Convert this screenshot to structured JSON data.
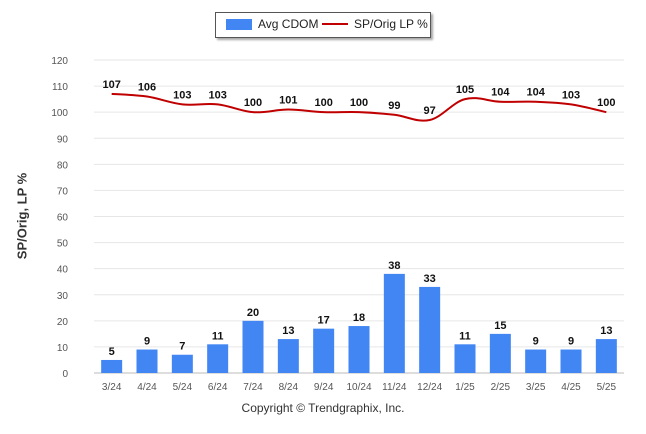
{
  "legend": {
    "bar_label": "Avg CDOM",
    "line_label": "SP/Orig LP %"
  },
  "copyright": "Copyright © Trendgraphix, Inc.",
  "chart_data": {
    "type": "bar",
    "categories": [
      "3/24",
      "4/24",
      "5/24",
      "6/24",
      "7/24",
      "8/24",
      "9/24",
      "10/24",
      "11/24",
      "12/24",
      "1/25",
      "2/25",
      "3/25",
      "4/25",
      "5/25"
    ],
    "series": [
      {
        "name": "Avg CDOM",
        "type": "bar",
        "color": "#4286f4",
        "values": [
          5,
          9,
          7,
          11,
          20,
          13,
          17,
          18,
          38,
          33,
          11,
          15,
          9,
          9,
          13
        ]
      },
      {
        "name": "SP/Orig LP %",
        "type": "line",
        "color": "#c00000",
        "values": [
          107,
          106,
          103,
          103,
          100,
          101,
          100,
          100,
          99,
          97,
          105,
          104,
          104,
          103,
          100
        ]
      }
    ],
    "ylabel": "SP/Orig, LP %",
    "xlabel": "",
    "ylim": [
      0,
      120
    ],
    "yticks": [
      0,
      10,
      20,
      30,
      40,
      50,
      60,
      70,
      80,
      90,
      100,
      110,
      120
    ],
    "grid": true,
    "legend_position": "top-center"
  }
}
